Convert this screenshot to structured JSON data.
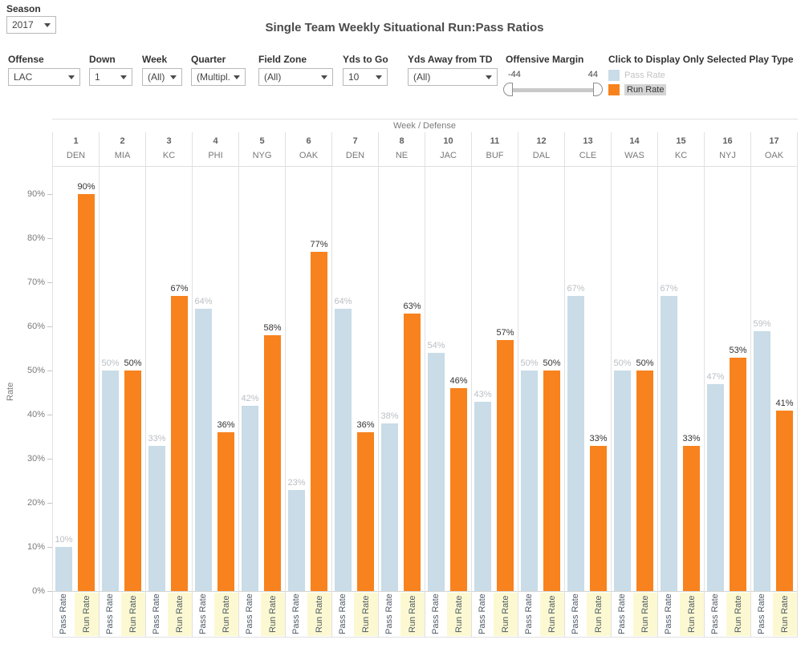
{
  "season": {
    "label": "Season",
    "value": "2017"
  },
  "title": "Single Team Weekly Situational Run:Pass Ratios",
  "filters": [
    {
      "label": "Offense",
      "value": "LAC"
    },
    {
      "label": "Down",
      "value": "1"
    },
    {
      "label": "Week",
      "value": "(All)"
    },
    {
      "label": "Quarter",
      "value": "(Multipl..."
    },
    {
      "label": "Field Zone",
      "value": "(All)"
    },
    {
      "label": "Yds to Go",
      "value": "10"
    },
    {
      "label": "Yds Away from TD",
      "value": "(All)"
    }
  ],
  "slider": {
    "label": "Offensive Margin",
    "min_value": "-44",
    "max_value": "44"
  },
  "legend": {
    "title": "Click to Display Only Selected Play Type",
    "items": [
      {
        "label": "Pass Rate",
        "color": "#C9DCE7",
        "state": "deselected"
      },
      {
        "label": "Run Rate",
        "color": "#F8821D",
        "state": "selected"
      }
    ]
  },
  "chart_data": {
    "type": "bar",
    "title": "Single Team Weekly Situational Run:Pass Ratios",
    "column_field_label": "Week / Defense",
    "ylabel": "Rate",
    "ylim": [
      0,
      95
    ],
    "yticks": [
      "0%",
      "10%",
      "20%",
      "30%",
      "40%",
      "50%",
      "60%",
      "70%",
      "80%",
      "90%"
    ],
    "grid": "column-dividers-only",
    "legend_position": "top-right",
    "categories": [
      {
        "week": "1",
        "defense": "DEN"
      },
      {
        "week": "2",
        "defense": "MIA"
      },
      {
        "week": "3",
        "defense": "KC"
      },
      {
        "week": "4",
        "defense": "PHI"
      },
      {
        "week": "5",
        "defense": "NYG"
      },
      {
        "week": "6",
        "defense": "OAK"
      },
      {
        "week": "7",
        "defense": "DEN"
      },
      {
        "week": "8",
        "defense": "NE"
      },
      {
        "week": "10",
        "defense": "JAC"
      },
      {
        "week": "11",
        "defense": "BUF"
      },
      {
        "week": "12",
        "defense": "DAL"
      },
      {
        "week": "13",
        "defense": "CLE"
      },
      {
        "week": "14",
        "defense": "WAS"
      },
      {
        "week": "15",
        "defense": "KC"
      },
      {
        "week": "16",
        "defense": "NYJ"
      },
      {
        "week": "17",
        "defense": "OAK"
      }
    ],
    "series": [
      {
        "name": "Pass Rate",
        "color": "#C9DCE7",
        "dimmed": true,
        "values": [
          10,
          50,
          33,
          64,
          42,
          23,
          64,
          38,
          54,
          43,
          50,
          67,
          50,
          67,
          47,
          59
        ]
      },
      {
        "name": "Run Rate",
        "color": "#F8821D",
        "dimmed": false,
        "values": [
          90,
          50,
          67,
          36,
          58,
          77,
          36,
          63,
          46,
          57,
          50,
          33,
          50,
          33,
          53,
          41
        ]
      }
    ],
    "value_label_suffix": "%",
    "selected_series_highlight_color": "#FCF9D2"
  }
}
